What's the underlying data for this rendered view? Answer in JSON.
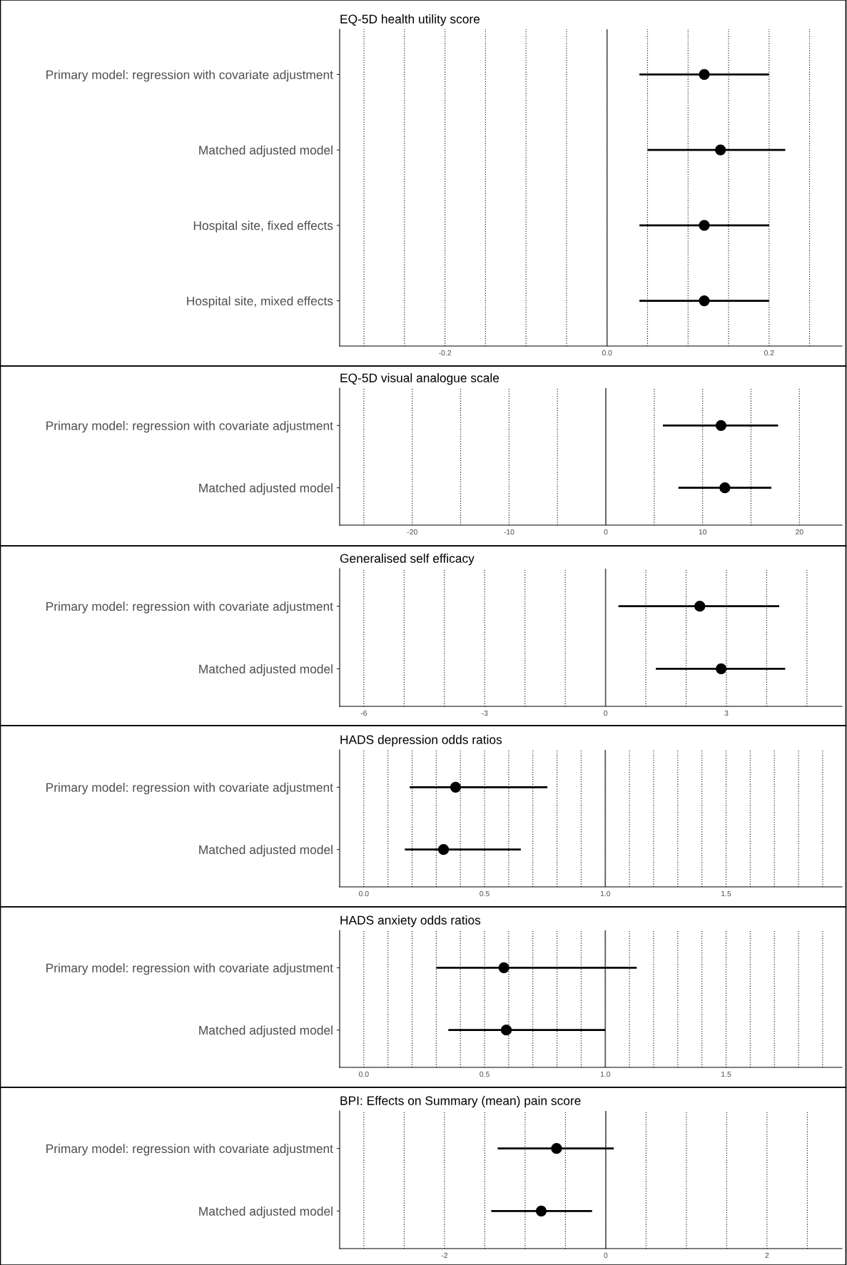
{
  "chart_data": [
    {
      "type": "scatter",
      "orientation": "horizontal",
      "title": "EQ-5D health utility score",
      "categories": [
        "Primary model: regression with covariate adjustment",
        "Matched adjusted model",
        "Hospital site, fixed effects",
        "Hospital site, mixed effects"
      ],
      "values": [
        0.12,
        0.14,
        0.12,
        0.12
      ],
      "errors": [
        [
          0.04,
          0.2
        ],
        [
          0.05,
          0.22
        ],
        [
          0.04,
          0.2
        ],
        [
          0.04,
          0.2
        ]
      ],
      "color": "#000000",
      "marker": "circle",
      "xlim": [
        -0.33,
        0.29
      ],
      "xticks": [
        {
          "value": -0.3,
          "label": null
        },
        {
          "value": -0.25,
          "label": null
        },
        {
          "value": -0.2,
          "label": "-0.2"
        },
        {
          "value": -0.15,
          "label": null
        },
        {
          "value": -0.1,
          "label": null
        },
        {
          "value": -0.05,
          "label": null
        },
        {
          "value": 0,
          "label": "0.0"
        },
        {
          "value": 0.05,
          "label": null
        },
        {
          "value": 0.1,
          "label": null
        },
        {
          "value": 0.15,
          "label": null
        },
        {
          "value": 0.2,
          "label": "0.2"
        },
        {
          "value": 0.25,
          "label": null
        }
      ],
      "grid": "x",
      "ref_lines": [
        {
          "axis": "x",
          "value": 0
        }
      ]
    },
    {
      "type": "scatter",
      "orientation": "horizontal",
      "title": "EQ-5D visual analogue scale",
      "categories": [
        "Primary model: regression with covariate adjustment",
        "Matched adjusted model"
      ],
      "values": [
        11.9,
        12.3
      ],
      "errors": [
        [
          5.9,
          17.8
        ],
        [
          7.5,
          17.1
        ]
      ],
      "color": "#000000",
      "marker": "circle",
      "xlim": [
        -27.5,
        24.4
      ],
      "xticks": [
        {
          "value": -25,
          "label": null
        },
        -20,
        {
          "value": -15,
          "label": null
        },
        -10,
        {
          "value": -5,
          "label": null
        },
        0,
        {
          "value": 5,
          "label": null
        },
        10,
        {
          "value": 15,
          "label": null
        },
        20
      ],
      "grid": "x",
      "ref_lines": [
        {
          "axis": "x",
          "value": 0
        }
      ]
    },
    {
      "type": "scatter",
      "orientation": "horizontal",
      "title": "Generalised self efficacy",
      "categories": [
        "Primary model: regression with covariate adjustment",
        "Matched adjusted model"
      ],
      "values": [
        2.34,
        2.87
      ],
      "errors": [
        [
          0.32,
          4.31
        ],
        [
          1.25,
          4.46
        ]
      ],
      "color": "#000000",
      "marker": "circle",
      "xlim": [
        -6.6,
        5.87
      ],
      "xticks": [
        -6,
        {
          "value": -5,
          "label": null
        },
        {
          "value": -4,
          "label": null
        },
        -3,
        {
          "value": -2,
          "label": null
        },
        {
          "value": -1,
          "label": null
        },
        0,
        {
          "value": 1,
          "label": null
        },
        {
          "value": 2,
          "label": null
        },
        3,
        {
          "value": 4,
          "label": null
        },
        {
          "value": 5,
          "label": null
        }
      ],
      "grid": "x",
      "ref_lines": [
        {
          "axis": "x",
          "value": 0
        }
      ]
    },
    {
      "type": "scatter",
      "orientation": "horizontal",
      "title": "HADS depression odds ratios",
      "categories": [
        "Primary model: regression with covariate adjustment",
        "Matched adjusted model"
      ],
      "values": [
        0.38,
        0.33
      ],
      "errors": [
        [
          0.19,
          0.76
        ],
        [
          0.17,
          0.65
        ]
      ],
      "color": "#000000",
      "marker": "circle",
      "xlim": [
        -0.1,
        1.98
      ],
      "xticks": [
        {
          "value": 0,
          "label": "0.0"
        },
        {
          "value": 0.1,
          "label": null
        },
        {
          "value": 0.2,
          "label": null
        },
        {
          "value": 0.3,
          "label": null
        },
        {
          "value": 0.4,
          "label": null
        },
        0.5,
        {
          "value": 0.6,
          "label": null
        },
        {
          "value": 0.7,
          "label": null
        },
        {
          "value": 0.8,
          "label": null
        },
        {
          "value": 0.9,
          "label": null
        },
        {
          "value": 1,
          "label": "1.0"
        },
        {
          "value": 1.1,
          "label": null
        },
        {
          "value": 1.2,
          "label": null
        },
        {
          "value": 1.3,
          "label": null
        },
        {
          "value": 1.4,
          "label": null
        },
        1.5,
        {
          "value": 1.6,
          "label": null
        },
        {
          "value": 1.7,
          "label": null
        },
        {
          "value": 1.8,
          "label": null
        },
        {
          "value": 1.9,
          "label": null
        }
      ],
      "grid": "x",
      "ref_lines": [
        {
          "axis": "x",
          "value": 1
        }
      ]
    },
    {
      "type": "scatter",
      "orientation": "horizontal",
      "title": "HADS anxiety odds ratios",
      "categories": [
        "Primary model: regression with covariate adjustment",
        "Matched adjusted model"
      ],
      "values": [
        0.58,
        0.59
      ],
      "errors": [
        [
          0.3,
          1.13
        ],
        [
          0.35,
          1.0
        ]
      ],
      "color": "#000000",
      "marker": "circle",
      "xlim": [
        -0.1,
        1.98
      ],
      "xticks": [
        {
          "value": 0,
          "label": "0.0"
        },
        {
          "value": 0.1,
          "label": null
        },
        {
          "value": 0.2,
          "label": null
        },
        {
          "value": 0.3,
          "label": null
        },
        {
          "value": 0.4,
          "label": null
        },
        0.5,
        {
          "value": 0.6,
          "label": null
        },
        {
          "value": 0.7,
          "label": null
        },
        {
          "value": 0.8,
          "label": null
        },
        {
          "value": 0.9,
          "label": null
        },
        {
          "value": 1,
          "label": "1.0"
        },
        {
          "value": 1.1,
          "label": null
        },
        {
          "value": 1.2,
          "label": null
        },
        {
          "value": 1.3,
          "label": null
        },
        {
          "value": 1.4,
          "label": null
        },
        1.5,
        {
          "value": 1.6,
          "label": null
        },
        {
          "value": 1.7,
          "label": null
        },
        {
          "value": 1.8,
          "label": null
        },
        {
          "value": 1.9,
          "label": null
        }
      ],
      "grid": "x",
      "ref_lines": [
        {
          "axis": "x",
          "value": 1
        }
      ]
    },
    {
      "type": "scatter",
      "orientation": "horizontal",
      "title": "BPI: Effects on Summary (mean) pain score",
      "categories": [
        "Primary model: regression with covariate adjustment",
        "Matched adjusted model"
      ],
      "values": [
        -0.61,
        -0.8
      ],
      "errors": [
        [
          -1.34,
          0.1
        ],
        [
          -1.42,
          -0.17
        ]
      ],
      "color": "#000000",
      "marker": "circle",
      "xlim": [
        -3.3,
        2.93
      ],
      "xticks": [
        {
          "value": -3,
          "label": null
        },
        {
          "value": -2.5,
          "label": null
        },
        -2,
        {
          "value": -1.5,
          "label": null
        },
        {
          "value": -1,
          "label": null
        },
        {
          "value": -0.5,
          "label": null
        },
        0,
        {
          "value": 0.5,
          "label": null
        },
        {
          "value": 1,
          "label": null
        },
        {
          "value": 1.5,
          "label": null
        },
        2,
        {
          "value": 2.5,
          "label": null
        }
      ],
      "grid": "x",
      "ref_lines": [
        {
          "axis": "x",
          "value": 0
        }
      ]
    }
  ]
}
